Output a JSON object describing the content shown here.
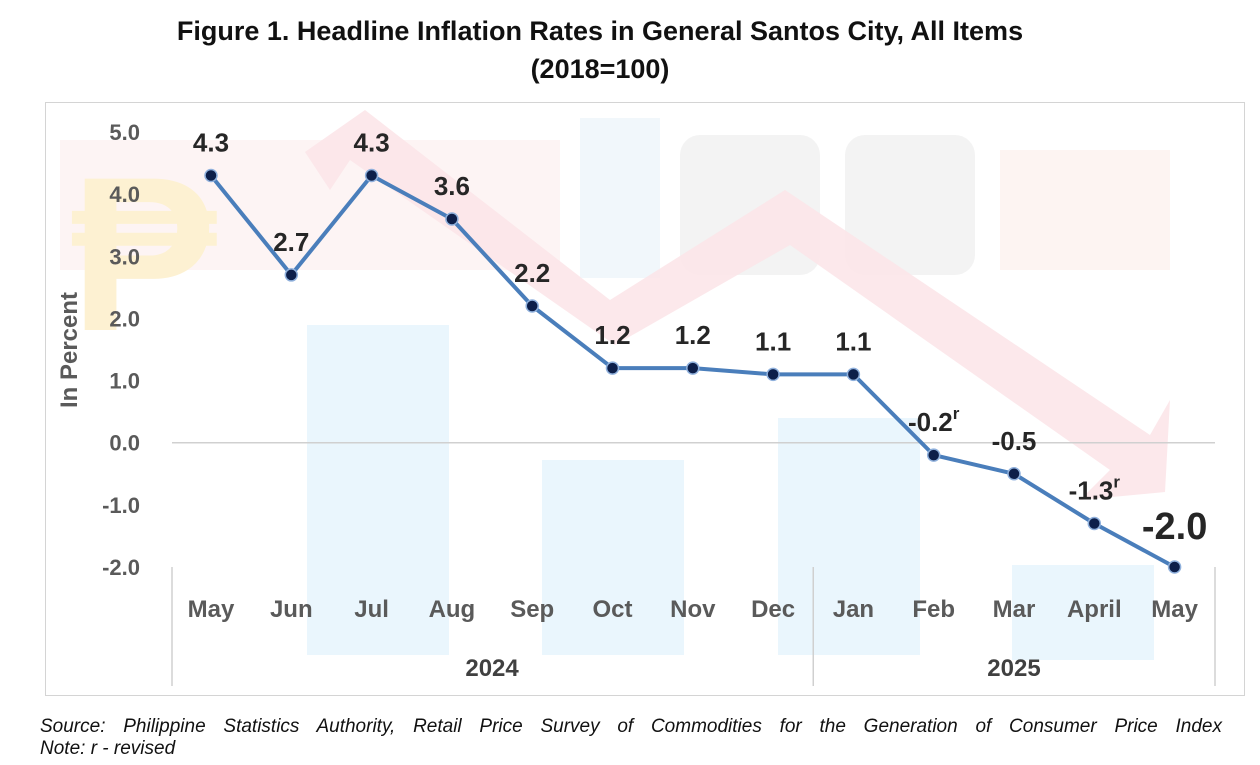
{
  "title_line1": "Figure 1. Headline Inflation Rates in General Santos City, All Items",
  "title_line2": "(2018=100)",
  "source": "Source: Philippine Statistics Authority, Retail Price Survey of Commodities for the Generation of Consumer Price Index",
  "note": "Note: r - revised",
  "chart_data": {
    "type": "line",
    "ylabel": "In Percent",
    "ylim": [
      -2.0,
      5.0
    ],
    "yticks": [
      "5.0",
      "4.0",
      "3.0",
      "2.0",
      "1.0",
      "0.0",
      "-1.0",
      "-2.0"
    ],
    "categories": [
      "May",
      "Jun",
      "Jul",
      "Aug",
      "Sep",
      "Oct",
      "Nov",
      "Dec",
      "Jan",
      "Feb",
      "Mar",
      "April",
      "May"
    ],
    "year_groups": [
      {
        "label": "2024",
        "count": 8
      },
      {
        "label": "2025",
        "count": 5
      }
    ],
    "values": [
      4.3,
      2.7,
      4.3,
      3.6,
      2.2,
      1.2,
      1.2,
      1.1,
      1.1,
      -0.2,
      -0.5,
      -1.3,
      -2.0
    ],
    "labels": [
      "4.3",
      "2.7",
      "4.3",
      "3.6",
      "2.2",
      "1.2",
      "1.2",
      "1.1",
      "1.1",
      "-0.2",
      "-0.5",
      "-1.3",
      "-2.0"
    ],
    "revised": [
      false,
      false,
      false,
      false,
      false,
      false,
      false,
      false,
      false,
      true,
      false,
      true,
      false
    ],
    "revised_marker": "r",
    "line_color": "#4a7ebb",
    "marker_color": "#0d1f4a"
  }
}
